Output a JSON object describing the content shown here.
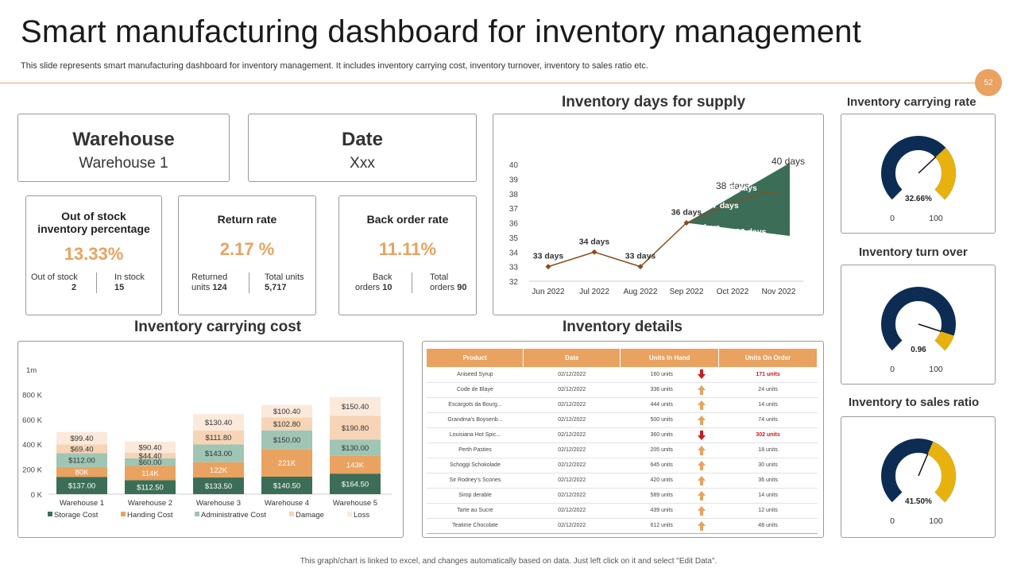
{
  "header": {
    "title": "Smart manufacturing dashboard for inventory management",
    "subtitle": "This slide represents smart manufacturing dashboard for inventory management. It includes inventory carrying cost, inventory turnover, inventory to sales ratio etc.",
    "page_number": "52"
  },
  "warehouse_card": {
    "title": "Warehouse",
    "value": "Warehouse 1"
  },
  "date_card": {
    "title": "Date",
    "value": "Xxx"
  },
  "kpis": {
    "out_of_stock": {
      "title_line1": "Out of stock",
      "title_line2": "inventory percentage",
      "value": "13.33%",
      "left_label": "Out of stock",
      "left_value": "2",
      "right_label": "In stock",
      "right_value": "15"
    },
    "return_rate": {
      "title": "Return rate",
      "value": "2.17 %",
      "left_label": "Returned",
      "left_prefix": "units",
      "left_value": "124",
      "right_label": "Total units",
      "right_value": "5,717"
    },
    "back_order": {
      "title": "Back order rate",
      "value": "11.11%",
      "left_label": "Back",
      "left_prefix": "orders",
      "left_value": "10",
      "right_label": "Total",
      "right_prefix": "orders",
      "right_value": "90"
    }
  },
  "sections": {
    "supply_title": "Inventory days for supply",
    "carrying_cost_title": "Inventory carrying cost",
    "details_title": "Inventory details",
    "carrying_rate_title": "Inventory carrying rate",
    "turnover_title": "Inventory turn over",
    "sales_ratio_title": "Inventory to sales ratio"
  },
  "gauges": [
    {
      "name": "carrying-rate",
      "fraction": 0.3266,
      "label": "32.66%",
      "min": "0",
      "max": "100",
      "bg": "#0d2c54",
      "fill": "#e8b20e"
    },
    {
      "name": "turnover",
      "fraction": 0.096,
      "label": "0.96",
      "min": "0",
      "max": "100",
      "bg": "#0d2c54",
      "fill": "#e8b20e"
    },
    {
      "name": "sales-ratio",
      "fraction": 0.415,
      "label": "41.50%",
      "min": "0",
      "max": "100",
      "bg": "#0d2c54",
      "fill": "#e8b20e"
    }
  ],
  "inventory_table": {
    "headers": [
      "Product",
      "Date",
      "Units In Hand",
      "Units On Order"
    ],
    "rows": [
      {
        "product": "Aniseed Syrup",
        "date": "02/12/2022",
        "hand": "160 units",
        "trend": "down",
        "order": "171 units",
        "alert": true
      },
      {
        "product": "Code de Blaye",
        "date": "02/12/2022",
        "hand": "336 units",
        "trend": "up",
        "order": "24 units",
        "alert": false
      },
      {
        "product": "Escargots da Bourg...",
        "date": "02/12/2022",
        "hand": "444 units",
        "trend": "up",
        "order": "14 units",
        "alert": false
      },
      {
        "product": "Grandma's Boysenb...",
        "date": "02/12/2022",
        "hand": "500 units",
        "trend": "up",
        "order": "74 units",
        "alert": false
      },
      {
        "product": "Louisiana Hot Spic...",
        "date": "02/12/2022",
        "hand": "360 units",
        "trend": "down",
        "order": "302 units",
        "alert": true
      },
      {
        "product": "Perth Pasties",
        "date": "02/12/2022",
        "hand": "205 units",
        "trend": "up",
        "order": "18 units",
        "alert": false
      },
      {
        "product": "Schoggi Schokolade",
        "date": "02/12/2022",
        "hand": "645 units",
        "trend": "up",
        "order": "30 units",
        "alert": false
      },
      {
        "product": "Sir Rodney's Scones",
        "date": "02/12/2022",
        "hand": "420 units",
        "trend": "up",
        "order": "36 units",
        "alert": false
      },
      {
        "product": "Sirop derable",
        "date": "02/12/2022",
        "hand": "589 units",
        "trend": "up",
        "order": "14 units",
        "alert": false
      },
      {
        "product": "Tarte au Sucre",
        "date": "02/12/2022",
        "hand": "439 units",
        "trend": "up",
        "order": "12 units",
        "alert": false
      },
      {
        "product": "Teatime Chocolate",
        "date": "02/12/2022",
        "hand": "612 units",
        "trend": "up",
        "order": "48 units",
        "alert": false
      }
    ]
  },
  "footer": "This graph/chart is linked to excel, and changes automatically based on data. Just left click on it and select \"Edit Data\".",
  "chart_data": [
    {
      "type": "line",
      "title": "Inventory days for supply",
      "categories": [
        "Jun 2022",
        "Jul 2022",
        "Aug 2022",
        "Sep 2022",
        "Oct 2022",
        "Nov 2022"
      ],
      "values": [
        33,
        34,
        33,
        36,
        38,
        40
      ],
      "value_labels": [
        "33 days",
        "34 days",
        "33 days",
        "36 days",
        "38 days",
        "40 days"
      ],
      "band_labels": [
        {
          "label": "36 days",
          "cat": 4.4,
          "y": 35.5
        },
        {
          "label": "36 days",
          "cat": 5.4,
          "y": 35.2
        },
        {
          "label": "37 days",
          "cat": 4.8,
          "y": 37.0
        },
        {
          "label": "38 days",
          "cat": 5.2,
          "y": 38.2
        }
      ],
      "ylim": [
        32,
        40
      ],
      "yticks": [
        32,
        33,
        34,
        35,
        36,
        37,
        38,
        39,
        40
      ],
      "line_color": "#8b4a1c",
      "band_color": "#3c6e57"
    },
    {
      "type": "bar",
      "stacked": true,
      "title": "Inventory carrying cost",
      "categories": [
        "Warehouse 1",
        "Warehouse 2",
        "Warehouse 3",
        "Warehouse 4",
        "Warehouse 5"
      ],
      "yticks": [
        "0 K",
        "200 K",
        "400 K",
        "600 K",
        "800 K",
        "1m"
      ],
      "ylim": [
        0,
        1000
      ],
      "series": [
        {
          "name": "Storage Cost",
          "color": "#3c6e57",
          "text_color": "#ffffff",
          "values": [
            137,
            112.5,
            133.5,
            140.5,
            164.5
          ],
          "labels": [
            "$137.00",
            "$112.50",
            "$133.50",
            "$140.50",
            "$164.50"
          ]
        },
        {
          "name": "Handing Cost",
          "color": "#e9a260",
          "text_color": "#ffffff",
          "values": [
            80,
            114,
            122,
            221,
            143
          ],
          "labels": [
            "80K",
            "114K",
            "122K",
            "221K",
            "143K"
          ]
        },
        {
          "name": "Administrative Cost",
          "color": "#9fc5b4",
          "text_color": "#333333",
          "values": [
            112,
            60,
            143,
            150,
            130
          ],
          "labels": [
            "$112.00",
            "$60.00",
            "$143.00",
            "$150.00",
            "$130.00"
          ]
        },
        {
          "name": "Damage",
          "color": "#f6d4b5",
          "text_color": "#333333",
          "values": [
            69.4,
            44.4,
            111.8,
            102.8,
            190.8
          ],
          "labels": [
            "$69.40",
            "$44.40",
            "$111.80",
            "$102.80",
            "$190.80"
          ]
        },
        {
          "name": "Loss",
          "color": "#fbe9dc",
          "text_color": "#333333",
          "values": [
            99.4,
            90.4,
            130.4,
            100.4,
            150.4
          ],
          "labels": [
            "$99.40",
            "$90.40",
            "$130.40",
            "$100.40",
            "$150.40"
          ]
        }
      ]
    }
  ]
}
